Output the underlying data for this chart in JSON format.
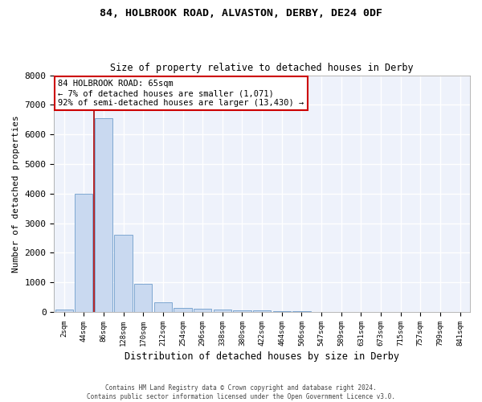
{
  "title1": "84, HOLBROOK ROAD, ALVASTON, DERBY, DE24 0DF",
  "title2": "Size of property relative to detached houses in Derby",
  "xlabel": "Distribution of detached houses by size in Derby",
  "ylabel": "Number of detached properties",
  "bar_labels": [
    "2sqm",
    "44sqm",
    "86sqm",
    "128sqm",
    "170sqm",
    "212sqm",
    "254sqm",
    "296sqm",
    "338sqm",
    "380sqm",
    "422sqm",
    "464sqm",
    "506sqm",
    "547sqm",
    "589sqm",
    "631sqm",
    "673sqm",
    "715sqm",
    "757sqm",
    "799sqm",
    "841sqm"
  ],
  "bar_values": [
    80,
    4000,
    6550,
    2620,
    950,
    330,
    140,
    110,
    80,
    60,
    50,
    30,
    20,
    10,
    5,
    3,
    2,
    2,
    1,
    1,
    1
  ],
  "bar_color": "#c9d9f0",
  "bar_edge_color": "#7fa8d1",
  "vline_x": 1.5,
  "annotation_text": "84 HOLBROOK ROAD: 65sqm\n← 7% of detached houses are smaller (1,071)\n92% of semi-detached houses are larger (13,430) →",
  "annotation_box_color": "#ffffff",
  "annotation_box_edge": "#cc0000",
  "ylim": [
    0,
    8000
  ],
  "yticks": [
    0,
    1000,
    2000,
    3000,
    4000,
    5000,
    6000,
    7000,
    8000
  ],
  "background_color": "#eef2fb",
  "grid_color": "#ffffff",
  "footer1": "Contains HM Land Registry data © Crown copyright and database right 2024.",
  "footer2": "Contains public sector information licensed under the Open Government Licence v3.0."
}
